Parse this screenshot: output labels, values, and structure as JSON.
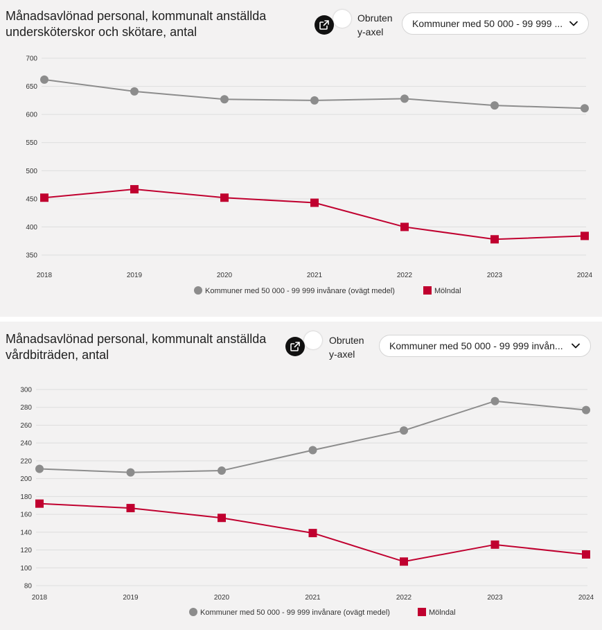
{
  "toggle_label_line1": "Obruten",
  "toggle_label_line2": "y-axel",
  "select_value_1": "Kommuner med 50 000 - 99 999 ...",
  "select_value_2": "Kommuner med 50 000 - 99 999 invån...",
  "icons": {
    "external": "external-link-icon",
    "dropdown": "chevron-down-icon"
  },
  "colors": {
    "average": "#8c8c8c",
    "municipality": "#c0002f",
    "grid": "#dddddd"
  },
  "chart_data": [
    {
      "type": "line",
      "title": "Månadsavlönad personal, kommunalt anställda undersköterskor och skötare, antal",
      "x": [
        "2018",
        "2019",
        "2020",
        "2021",
        "2022",
        "2023",
        "2024"
      ],
      "y_ticks": [
        350,
        400,
        450,
        500,
        550,
        600,
        650,
        700
      ],
      "ylim": [
        340,
        700
      ],
      "grid": true,
      "legend_position": "bottom",
      "series": [
        {
          "name": "Kommuner med 50 000 - 99 999 invånare (ovägt medel)",
          "marker": "circle",
          "color": "#8c8c8c",
          "values": [
            662,
            641,
            627,
            625,
            628,
            616,
            611
          ]
        },
        {
          "name": "Mölndal",
          "marker": "square",
          "color": "#c0002f",
          "values": [
            452,
            467,
            452,
            443,
            400,
            378,
            384
          ]
        }
      ]
    },
    {
      "type": "line",
      "title": "Månadsavlönad personal, kommunalt anställda vårdbiträden, antal",
      "x": [
        "2018",
        "2019",
        "2020",
        "2021",
        "2022",
        "2023",
        "2024"
      ],
      "y_ticks": [
        80,
        100,
        120,
        140,
        160,
        180,
        200,
        220,
        240,
        260,
        280,
        300
      ],
      "ylim": [
        80,
        300
      ],
      "grid": true,
      "legend_position": "bottom",
      "series": [
        {
          "name": "Kommuner med 50 000 - 99 999 invånare (ovägt medel)",
          "marker": "circle",
          "color": "#8c8c8c",
          "values": [
            211,
            207,
            209,
            232,
            254,
            287,
            277
          ]
        },
        {
          "name": "Mölndal",
          "marker": "square",
          "color": "#c0002f",
          "values": [
            172,
            167,
            156,
            139,
            107,
            126,
            115
          ]
        }
      ]
    }
  ]
}
